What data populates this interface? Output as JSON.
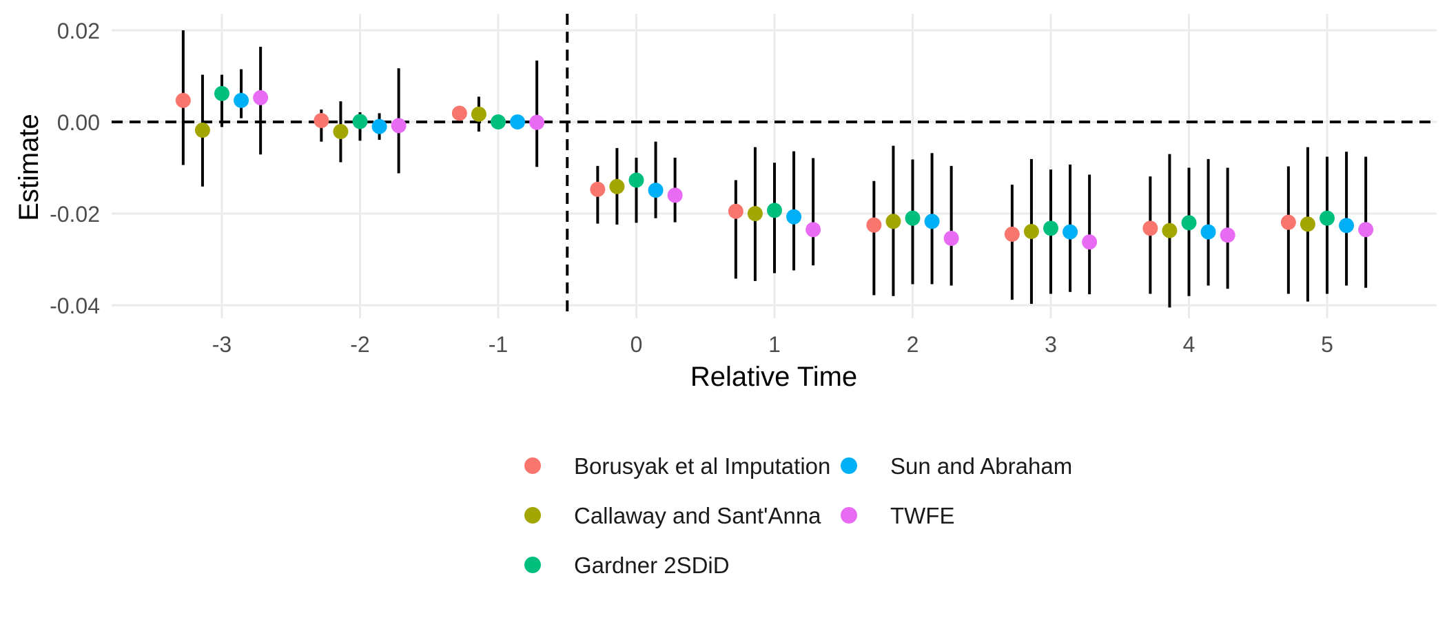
{
  "chart_data": {
    "type": "scatter",
    "xlabel": "Relative Time",
    "ylabel": "Estimate",
    "x_ticks": [
      -3,
      -2,
      -1,
      0,
      1,
      2,
      3,
      4,
      5
    ],
    "y_ticks": [
      0.02,
      0.0,
      -0.02,
      -0.04
    ],
    "y_tick_labels": [
      "0.02",
      "0.00",
      "-0.02",
      "-0.04"
    ],
    "xlim": [
      -3.8,
      5.8
    ],
    "ylim": [
      -0.043,
      0.023
    ],
    "grid": true,
    "legend_position": "bottom",
    "reference_lines": {
      "horizontal_at_y": 0,
      "vertical_at_x": -0.5,
      "style": "dashed"
    },
    "error_bars": "vertical confidence intervals",
    "series": [
      {
        "name": "Borusyak et al Imputation",
        "color": "#F8766D",
        "offset": -0.28,
        "x": [
          -3,
          -2,
          -1,
          0,
          1,
          2,
          3,
          4,
          5
        ],
        "y": [
          0.0047,
          0.0003,
          0.0019,
          -0.0147,
          -0.0195,
          -0.0225,
          -0.0245,
          -0.0232,
          -0.0219
        ],
        "lower": [
          -0.0094,
          -0.0043,
          null,
          -0.0222,
          -0.0342,
          -0.0378,
          -0.0388,
          -0.0375,
          -0.0375
        ],
        "upper": [
          0.02,
          0.0027,
          null,
          -0.0096,
          -0.0127,
          -0.0129,
          -0.0137,
          -0.0119,
          -0.0097
        ]
      },
      {
        "name": "Callaway and Sant'Anna",
        "color": "#A3A500",
        "offset": -0.14,
        "x": [
          -3,
          -2,
          -1,
          0,
          1,
          2,
          3,
          4,
          5
        ],
        "y": [
          -0.0018,
          -0.0021,
          0.0017,
          -0.0141,
          -0.02,
          -0.0217,
          -0.0239,
          -0.0237,
          -0.0223
        ],
        "lower": [
          -0.0141,
          -0.0088,
          -0.0021,
          -0.0224,
          -0.0347,
          -0.038,
          -0.0397,
          -0.0405,
          -0.0392
        ],
        "upper": [
          0.0103,
          0.0045,
          0.0055,
          -0.0057,
          -0.0055,
          -0.0052,
          -0.0081,
          -0.007,
          -0.0055
        ]
      },
      {
        "name": "Gardner 2SDiD",
        "color": "#00BF7D",
        "offset": 0.0,
        "x": [
          -3,
          -2,
          -1,
          0,
          1,
          2,
          3,
          4,
          5
        ],
        "y": [
          0.0062,
          0.0001,
          0.0,
          -0.0127,
          -0.0193,
          -0.021,
          -0.0232,
          -0.022,
          -0.021
        ],
        "lower": [
          -0.0011,
          -0.0041,
          null,
          -0.022,
          -0.033,
          -0.0354,
          -0.0375,
          -0.038,
          -0.0375
        ],
        "upper": [
          0.0103,
          0.0021,
          null,
          -0.0078,
          -0.0089,
          -0.0082,
          -0.0104,
          -0.01,
          -0.0076
        ]
      },
      {
        "name": "Sun and Abraham",
        "color": "#00B0F6",
        "offset": 0.14,
        "x": [
          -3,
          -2,
          -1,
          0,
          1,
          2,
          3,
          4,
          5
        ],
        "y": [
          0.0047,
          -0.001,
          0.0,
          -0.0149,
          -0.0207,
          -0.0217,
          -0.024,
          -0.024,
          -0.0226
        ],
        "lower": [
          0.0008,
          -0.0039,
          null,
          -0.021,
          -0.0324,
          -0.0354,
          -0.0371,
          -0.0357,
          -0.0357
        ],
        "upper": [
          0.0115,
          0.0019,
          null,
          -0.0043,
          -0.0064,
          -0.0068,
          -0.0093,
          -0.0081,
          -0.0065
        ]
      },
      {
        "name": "TWFE",
        "color": "#E76BF3",
        "offset": 0.28,
        "x": [
          -3,
          -2,
          -1,
          0,
          1,
          2,
          3,
          4,
          5
        ],
        "y": [
          0.0053,
          -0.0008,
          -0.0001,
          -0.016,
          -0.0235,
          -0.0254,
          -0.0262,
          -0.0247,
          -0.0235
        ],
        "lower": [
          -0.0071,
          -0.0112,
          -0.0098,
          -0.0219,
          -0.0313,
          -0.0357,
          -0.0376,
          -0.0364,
          -0.0362
        ],
        "upper": [
          0.0164,
          0.0117,
          0.0134,
          -0.0078,
          -0.0079,
          -0.0096,
          -0.0115,
          -0.01,
          -0.0076
        ]
      }
    ]
  }
}
